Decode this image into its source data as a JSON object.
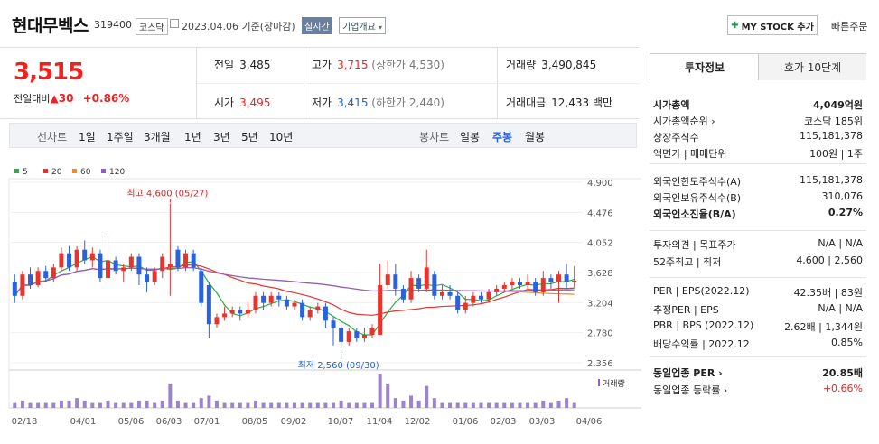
{
  "header": {
    "name": "현대무벡스",
    "code": "319400",
    "market": "코스닥",
    "date_text": "2023.04.06 기준(장마감)",
    "realtime_label": "실시간",
    "company_overview": "기업개요",
    "my_stock_label": "MY STOCK 추가",
    "quick_order": "빠른주문"
  },
  "price": {
    "current": "3,515",
    "change_label": "전일대비",
    "change_value": "30",
    "change_pct": "+0.86%"
  },
  "quote": {
    "prev_label": "전일",
    "prev": "3,485",
    "high_label": "고가",
    "high": "3,715",
    "high_limit": "(상한가 4,530)",
    "vol_label": "거래량",
    "vol": "3,490,845",
    "open_label": "시가",
    "open": "3,495",
    "low_label": "저가",
    "low": "3,415",
    "low_limit": "(하한가 2,440)",
    "amt_label": "거래대금",
    "amt": "12,433",
    "amt_unit": "백만"
  },
  "period_tabs": {
    "line_label": "선차트",
    "items": [
      "1일",
      "1주일",
      "3개월",
      "1년",
      "3년",
      "5년",
      "10년"
    ],
    "candle_label": "봉차트",
    "candle_items": [
      "일봉",
      "주봉",
      "월봉"
    ],
    "active": "주봉"
  },
  "side": {
    "tab_invest": "투자정보",
    "tab_quote": "호가 10단계",
    "rows1": [
      {
        "k": "시가총액",
        "v": "4,049억원"
      },
      {
        "k": "시가총액순위 ›",
        "v": "코스닥 185위"
      },
      {
        "k": "상장주식수",
        "v": "115,181,378"
      },
      {
        "k": "액면가 | 매매단위",
        "v": "100원 | 1주"
      }
    ],
    "rows2": [
      {
        "k": "외국인한도주식수(A)",
        "v": "115,181,378"
      },
      {
        "k": "외국인보유주식수(B)",
        "v": "310,076"
      },
      {
        "k": "외국인소진율(B/A)",
        "v": "0.27%"
      }
    ],
    "rows3": [
      {
        "k": "투자의견 | 목표주가",
        "v": "N/A | N/A"
      },
      {
        "k": "52주최고 | 최저",
        "v": "4,600 | 2,560"
      }
    ],
    "rows4": [
      {
        "k": "PER | EPS(2022.12)",
        "v": "42.35배 | 83원"
      },
      {
        "k": "추정PER | EPS",
        "v": "N/A | N/A"
      },
      {
        "k": "PBR | BPS (2022.12)",
        "v": "2.62배 | 1,344원"
      },
      {
        "k": "배당수익률 | 2022.12",
        "v": "0.85%"
      }
    ],
    "rows5": [
      {
        "k": "동일업종 PER ›",
        "v": "20.85배"
      },
      {
        "k": "동일업종 등락률 ›",
        "v": "+0.66%"
      }
    ]
  },
  "chart_data": {
    "type": "candlestick",
    "legend": [
      {
        "name": "5",
        "color": "#2eaa4a"
      },
      {
        "name": "20",
        "color": "#e5352f"
      },
      {
        "name": "60",
        "color": "#f08a24"
      },
      {
        "name": "120",
        "color": "#8c5fc8"
      }
    ],
    "y_ticks": [
      "4,900",
      "4,476",
      "4,052",
      "3,628",
      "3,204",
      "2,780",
      "2,356"
    ],
    "ylim": [
      2356,
      4900
    ],
    "x_ticks": [
      "02/18",
      "04/01",
      "05/06",
      "06/03",
      "07/01",
      "08/05",
      "09/02",
      "10/07",
      "11/04",
      "12/02",
      "01/06",
      "02/03",
      "03/03",
      "04/06"
    ],
    "high_label": "최고 4,600 (05/27)",
    "low_label": "최저 2,560 (09/30)",
    "volume_label": "거래량",
    "candles": [
      {
        "o": 3500,
        "c": 3300,
        "h": 3600,
        "l": 3200
      },
      {
        "o": 3300,
        "c": 3600,
        "h": 3650,
        "l": 3250
      },
      {
        "o": 3600,
        "c": 3450,
        "h": 3700,
        "l": 3400
      },
      {
        "o": 3450,
        "c": 3650,
        "h": 3700,
        "l": 3420
      },
      {
        "o": 3650,
        "c": 3550,
        "h": 3720,
        "l": 3500
      },
      {
        "o": 3550,
        "c": 3700,
        "h": 3750,
        "l": 3500
      },
      {
        "o": 3700,
        "c": 3900,
        "h": 3980,
        "l": 3650
      },
      {
        "o": 3900,
        "c": 3700,
        "h": 4000,
        "l": 3650
      },
      {
        "o": 3700,
        "c": 3950,
        "h": 4000,
        "l": 3650
      },
      {
        "o": 3950,
        "c": 3800,
        "h": 4080,
        "l": 3750
      },
      {
        "o": 3800,
        "c": 3900,
        "h": 3980,
        "l": 3700
      },
      {
        "o": 3900,
        "c": 3550,
        "h": 3950,
        "l": 3500
      },
      {
        "o": 3550,
        "c": 3800,
        "h": 4150,
        "l": 3500
      },
      {
        "o": 3800,
        "c": 3650,
        "h": 3850,
        "l": 3600
      },
      {
        "o": 3650,
        "c": 3700,
        "h": 3750,
        "l": 3500
      },
      {
        "o": 3700,
        "c": 3850,
        "h": 3900,
        "l": 3650
      },
      {
        "o": 3850,
        "c": 3600,
        "h": 3900,
        "l": 3450
      },
      {
        "o": 3600,
        "c": 3500,
        "h": 3700,
        "l": 3350
      },
      {
        "o": 3500,
        "c": 3650,
        "h": 3700,
        "l": 3450
      },
      {
        "o": 3650,
        "c": 3850,
        "h": 3900,
        "l": 3550
      },
      {
        "o": 3700,
        "c": 3750,
        "h": 4600,
        "l": 3300
      },
      {
        "o": 3950,
        "c": 3700,
        "h": 4000,
        "l": 3650
      },
      {
        "o": 3700,
        "c": 3900,
        "h": 3950,
        "l": 3650
      },
      {
        "o": 3900,
        "c": 3700,
        "h": 3950,
        "l": 3650
      },
      {
        "o": 3650,
        "c": 3200,
        "h": 3700,
        "l": 3150
      },
      {
        "o": 3450,
        "c": 2900,
        "h": 3500,
        "l": 2700
      },
      {
        "o": 2900,
        "c": 3000,
        "h": 3050,
        "l": 2850
      },
      {
        "o": 3000,
        "c": 3050,
        "h": 3150,
        "l": 2950
      },
      {
        "o": 3050,
        "c": 3100,
        "h": 3150,
        "l": 3000
      },
      {
        "o": 3100,
        "c": 3050,
        "h": 3150,
        "l": 2950
      },
      {
        "o": 3050,
        "c": 3100,
        "h": 3200,
        "l": 3000
      },
      {
        "o": 3100,
        "c": 3300,
        "h": 3350,
        "l": 3050
      },
      {
        "o": 3300,
        "c": 3200,
        "h": 3350,
        "l": 3100
      },
      {
        "o": 3200,
        "c": 3300,
        "h": 3350,
        "l": 3150
      },
      {
        "o": 3300,
        "c": 3250,
        "h": 3350,
        "l": 3150
      },
      {
        "o": 3250,
        "c": 3150,
        "h": 3300,
        "l": 3100
      },
      {
        "o": 3150,
        "c": 3200,
        "h": 3250,
        "l": 3100
      },
      {
        "o": 3200,
        "c": 3000,
        "h": 3250,
        "l": 2950
      },
      {
        "o": 3000,
        "c": 3100,
        "h": 3150,
        "l": 2950
      },
      {
        "o": 3100,
        "c": 3150,
        "h": 3200,
        "l": 3050
      },
      {
        "o": 3150,
        "c": 2950,
        "h": 3200,
        "l": 2850
      },
      {
        "o": 2950,
        "c": 2850,
        "h": 3000,
        "l": 2600
      },
      {
        "o": 2850,
        "c": 2650,
        "h": 2900,
        "l": 2560
      },
      {
        "o": 2650,
        "c": 2800,
        "h": 2850,
        "l": 2600
      },
      {
        "o": 2800,
        "c": 2700,
        "h": 2850,
        "l": 2650
      },
      {
        "o": 2700,
        "c": 2750,
        "h": 2850,
        "l": 2650
      },
      {
        "o": 2750,
        "c": 2850,
        "h": 2900,
        "l": 2700
      },
      {
        "o": 2750,
        "c": 3450,
        "h": 3750,
        "l": 2750
      },
      {
        "o": 3450,
        "c": 3600,
        "h": 3800,
        "l": 3400
      },
      {
        "o": 3600,
        "c": 3400,
        "h": 3750,
        "l": 3300
      },
      {
        "o": 3400,
        "c": 3250,
        "h": 3450,
        "l": 3200
      },
      {
        "o": 3250,
        "c": 3550,
        "h": 3650,
        "l": 3200
      },
      {
        "o": 3550,
        "c": 3400,
        "h": 3600,
        "l": 3350
      },
      {
        "o": 3400,
        "c": 3700,
        "h": 3950,
        "l": 3350
      },
      {
        "o": 3600,
        "c": 3300,
        "h": 3650,
        "l": 3250
      },
      {
        "o": 3300,
        "c": 3350,
        "h": 3450,
        "l": 3250
      },
      {
        "o": 3350,
        "c": 3300,
        "h": 3450,
        "l": 3250
      },
      {
        "o": 3300,
        "c": 3100,
        "h": 3350,
        "l": 3050
      },
      {
        "o": 3100,
        "c": 3200,
        "h": 3300,
        "l": 3050
      },
      {
        "o": 3200,
        "c": 3300,
        "h": 3350,
        "l": 3150
      },
      {
        "o": 3300,
        "c": 3250,
        "h": 3350,
        "l": 3200
      },
      {
        "o": 3250,
        "c": 3350,
        "h": 3400,
        "l": 3200
      },
      {
        "o": 3350,
        "c": 3400,
        "h": 3450,
        "l": 3300
      },
      {
        "o": 3400,
        "c": 3450,
        "h": 3500,
        "l": 3350
      },
      {
        "o": 3450,
        "c": 3500,
        "h": 3550,
        "l": 3400
      },
      {
        "o": 3500,
        "c": 3450,
        "h": 3550,
        "l": 3400
      },
      {
        "o": 3450,
        "c": 3500,
        "h": 3600,
        "l": 3400
      },
      {
        "o": 3500,
        "c": 3350,
        "h": 3550,
        "l": 3300
      },
      {
        "o": 3350,
        "c": 3550,
        "h": 3650,
        "l": 3300
      },
      {
        "o": 3550,
        "c": 3500,
        "h": 3600,
        "l": 3400
      },
      {
        "o": 3500,
        "c": 3600,
        "h": 3650,
        "l": 3200
      },
      {
        "o": 3600,
        "c": 3500,
        "h": 3750,
        "l": 3400
      },
      {
        "o": 3495,
        "c": 3515,
        "h": 3715,
        "l": 3415
      }
    ],
    "volume": [
      2,
      3,
      2,
      2,
      2,
      2,
      3,
      3,
      4,
      3,
      2,
      2,
      3,
      2,
      2,
      2,
      3,
      3,
      2,
      3,
      10,
      3,
      2,
      2,
      4,
      5,
      3,
      2,
      2,
      2,
      2,
      3,
      2,
      2,
      2,
      2,
      2,
      2,
      2,
      2,
      2,
      2,
      3,
      2,
      2,
      2,
      2,
      14,
      10,
      4,
      3,
      5,
      3,
      9,
      4,
      2,
      2,
      2,
      2,
      2,
      2,
      2,
      2,
      2,
      2,
      2,
      2,
      2,
      3,
      2,
      3,
      4,
      2
    ]
  }
}
